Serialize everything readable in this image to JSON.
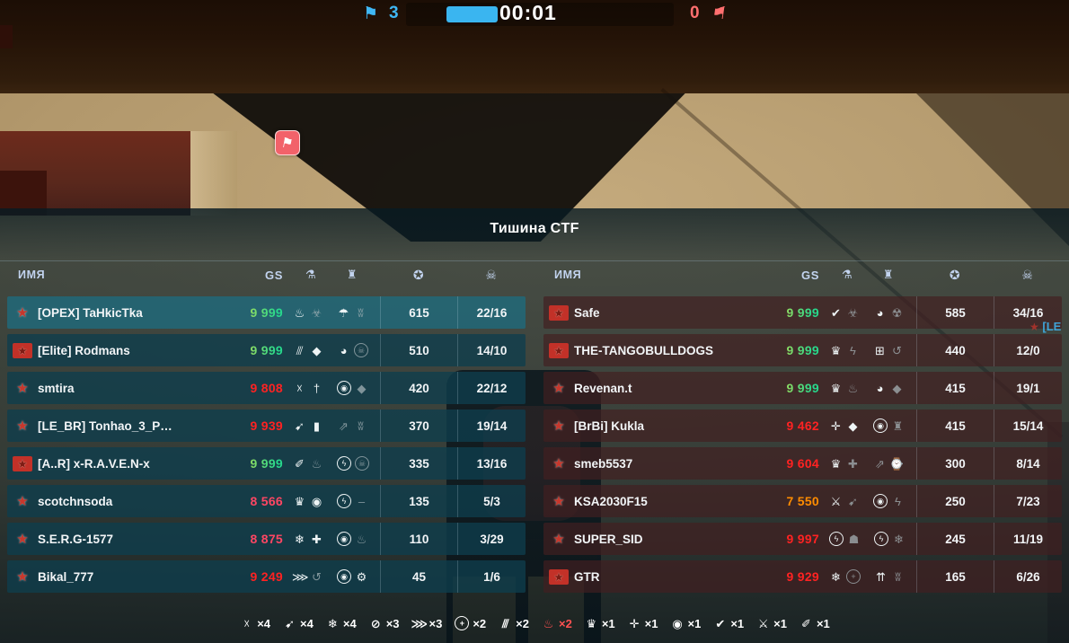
{
  "title": "Тишина CTF",
  "hud": {
    "blue_score": "3",
    "red_score": "0",
    "timer": "00:01",
    "colors": {
      "blue": "#3fb7f5",
      "red": "#ff6f6f",
      "progress_bar": "#3ab5f0"
    }
  },
  "killfeed": {
    "fragment": "[LE"
  },
  "columns": {
    "name": "ИМЯ",
    "gs": "GS"
  },
  "icon_glyphs": {
    "flag": "⚑",
    "thermometer": "⚗",
    "tank": "♜",
    "star-badge": "✪",
    "skull": "☠",
    "flame": "♨",
    "biohazard": "☣",
    "radiation": "☢",
    "parachute": "☂",
    "wings": "ʬ",
    "claw-marks": "⫻",
    "diamond": "◆",
    "orb": "◕",
    "skull-circle": "☠",
    "crossed-arrows": "☓",
    "dagger": "†",
    "target": "◉",
    "arrow-swoosh": "➹",
    "bullets": "▮",
    "arrow-dash": "⇗",
    "bullet-pen": "✐",
    "lightning": "ϟ",
    "lightning-circle": "ϟ",
    "crown": "♛",
    "circle-dot": "◉",
    "snowflake": "❄",
    "medic-cross": "✚",
    "wrench": "⚙",
    "speed-lines": "⋙",
    "throw": "↺",
    "check": "✔",
    "grid-squares": "⊞",
    "lightning-plus": "✛",
    "shield": "☗",
    "stopwatch": "⌚",
    "crossed-weapons": "⚔",
    "triple-up": "⇈",
    "crosshair": "+",
    "ban-circle": "⊘",
    "dash": "–"
  },
  "circled_icons": [
    "target",
    "lightning-circle",
    "skull-circle",
    "crosshair"
  ],
  "gs_tone_colors": {
    "max": "gradient-yellow-green",
    "red": "#ff2222",
    "pink": "#ff4663",
    "orange": "#ff8c00"
  },
  "teams": [
    {
      "side": "blue",
      "rows": [
        {
          "rank": "wing",
          "name": "[OPEX] TaHkicTka",
          "gs": "9 999",
          "gs_tone": "max",
          "icons": [
            [
              "flame",
              0
            ],
            [
              "biohazard",
              1
            ],
            [
              "parachute",
              0
            ],
            [
              "wings",
              1
            ]
          ],
          "score": "615",
          "kd": "22/16",
          "highlight": true
        },
        {
          "rank": "ribbon",
          "name": "[Elite] Rodmans",
          "gs": "9 999",
          "gs_tone": "max",
          "icons": [
            [
              "claw-marks",
              0
            ],
            [
              "diamond",
              0
            ],
            [
              "orb",
              0
            ],
            [
              "skull-circle",
              1
            ]
          ],
          "score": "510",
          "kd": "14/10",
          "highlight": false
        },
        {
          "rank": "wing",
          "name": "smtira",
          "gs": "9 808",
          "gs_tone": "red",
          "icons": [
            [
              "crossed-arrows",
              0
            ],
            [
              "dagger",
              0
            ],
            [
              "target",
              0
            ],
            [
              "diamond",
              1
            ]
          ],
          "score": "420",
          "kd": "22/12",
          "highlight": false
        },
        {
          "rank": "wing",
          "name": "[LE_BR] Tonhao_3_P…",
          "gs": "9 939",
          "gs_tone": "red",
          "icons": [
            [
              "arrow-swoosh",
              0
            ],
            [
              "bullets",
              0
            ],
            [
              "arrow-dash",
              1
            ],
            [
              "wings",
              1
            ]
          ],
          "score": "370",
          "kd": "19/14",
          "highlight": false
        },
        {
          "rank": "ribbon",
          "name": "[A..R] x-R.A.V.E.N-x",
          "gs": "9 999",
          "gs_tone": "max",
          "icons": [
            [
              "bullet-pen",
              0
            ],
            [
              "flame",
              1
            ],
            [
              "lightning-circle",
              0
            ],
            [
              "skull-circle",
              1
            ]
          ],
          "score": "335",
          "kd": "13/16",
          "highlight": false
        },
        {
          "rank": "wing",
          "name": "scotchnsoda",
          "gs": "8 566",
          "gs_tone": "pink",
          "icons": [
            [
              "crown",
              0
            ],
            [
              "circle-dot",
              0
            ],
            [
              "lightning-circle",
              0
            ],
            [
              "dash",
              1
            ]
          ],
          "score": "135",
          "kd": "5/3",
          "highlight": false
        },
        {
          "rank": "wing",
          "name": "S.E.R.G-1577",
          "gs": "8 875",
          "gs_tone": "pink",
          "icons": [
            [
              "snowflake",
              0
            ],
            [
              "medic-cross",
              0
            ],
            [
              "target",
              0
            ],
            [
              "flame",
              1
            ]
          ],
          "score": "110",
          "kd": "3/29",
          "highlight": false
        },
        {
          "rank": "wing",
          "name": "Bikal_777",
          "gs": "9 249",
          "gs_tone": "red",
          "icons": [
            [
              "speed-lines",
              0
            ],
            [
              "throw",
              1
            ],
            [
              "target",
              0
            ],
            [
              "wrench",
              0
            ]
          ],
          "score": "45",
          "kd": "1/6",
          "highlight": false
        }
      ]
    },
    {
      "side": "red",
      "rows": [
        {
          "rank": "ribbon",
          "name": "Safe",
          "gs": "9 999",
          "gs_tone": "max",
          "icons": [
            [
              "check",
              0
            ],
            [
              "biohazard",
              1
            ],
            [
              "orb",
              0
            ],
            [
              "radiation",
              1
            ]
          ],
          "score": "585",
          "kd": "34/16",
          "highlight": false
        },
        {
          "rank": "ribbon",
          "name": "THE-TANGOBULLDOGS",
          "gs": "9 999",
          "gs_tone": "max",
          "icons": [
            [
              "crown",
              0
            ],
            [
              "lightning",
              1
            ],
            [
              "grid-squares",
              0
            ],
            [
              "throw",
              1
            ]
          ],
          "score": "440",
          "kd": "12/0",
          "highlight": false
        },
        {
          "rank": "wing",
          "name": "Revenan.t",
          "gs": "9 999",
          "gs_tone": "max",
          "icons": [
            [
              "crown",
              0
            ],
            [
              "flame",
              1
            ],
            [
              "orb",
              0
            ],
            [
              "diamond",
              1
            ]
          ],
          "score": "415",
          "kd": "19/1",
          "highlight": false
        },
        {
          "rank": "wing",
          "name": "[BrBi] Kukla",
          "gs": "9 462",
          "gs_tone": "red",
          "icons": [
            [
              "lightning-plus",
              0
            ],
            [
              "diamond",
              0
            ],
            [
              "target",
              0
            ],
            [
              "tank",
              1
            ]
          ],
          "score": "415",
          "kd": "15/14",
          "highlight": false
        },
        {
          "rank": "wing",
          "name": "smeb5537",
          "gs": "9 604",
          "gs_tone": "red",
          "icons": [
            [
              "crown",
              0
            ],
            [
              "medic-cross",
              1
            ],
            [
              "arrow-dash",
              1
            ],
            [
              "stopwatch",
              0
            ]
          ],
          "score": "300",
          "kd": "8/14",
          "highlight": false
        },
        {
          "rank": "wing",
          "name": "KSA2030F15",
          "gs": "7 550",
          "gs_tone": "orange",
          "icons": [
            [
              "crossed-weapons",
              0
            ],
            [
              "arrow-swoosh",
              1
            ],
            [
              "target",
              0
            ],
            [
              "lightning",
              1
            ]
          ],
          "score": "250",
          "kd": "7/23",
          "highlight": false
        },
        {
          "rank": "wing",
          "name": "SUPER_SID",
          "gs": "9 997",
          "gs_tone": "red",
          "icons": [
            [
              "lightning-circle",
              0
            ],
            [
              "shield",
              1
            ],
            [
              "lightning-circle",
              0
            ],
            [
              "snowflake",
              1
            ]
          ],
          "score": "245",
          "kd": "11/19",
          "highlight": false
        },
        {
          "rank": "ribbon",
          "name": "GTR",
          "gs": "9 929",
          "gs_tone": "red",
          "icons": [
            [
              "snowflake",
              0
            ],
            [
              "crosshair",
              1
            ],
            [
              "triple-up",
              0
            ],
            [
              "wings",
              1
            ]
          ],
          "score": "165",
          "kd": "6/26",
          "highlight": false
        }
      ]
    }
  ],
  "streaks": [
    {
      "icon": "crossed-arrows",
      "count": "×4",
      "hot": false
    },
    {
      "icon": "arrow-swoosh",
      "count": "×4",
      "hot": false
    },
    {
      "icon": "snowflake",
      "count": "×4",
      "hot": false
    },
    {
      "icon": "ban-circle",
      "count": "×3",
      "hot": false
    },
    {
      "icon": "speed-lines",
      "count": "×3",
      "hot": false
    },
    {
      "icon": "crosshair",
      "count": "×2",
      "hot": false
    },
    {
      "icon": "claw-marks",
      "count": "×2",
      "hot": false
    },
    {
      "icon": "flame",
      "count": "×2",
      "hot": true
    },
    {
      "icon": "crown",
      "count": "×1",
      "hot": false
    },
    {
      "icon": "lightning-plus",
      "count": "×1",
      "hot": false
    },
    {
      "icon": "circle-dot",
      "count": "×1",
      "hot": false
    },
    {
      "icon": "check",
      "count": "×1",
      "hot": false
    },
    {
      "icon": "crossed-weapons",
      "count": "×1",
      "hot": false
    },
    {
      "icon": "bullet-pen",
      "count": "×1",
      "hot": false
    }
  ],
  "streak_hot_color": "#ff5252"
}
